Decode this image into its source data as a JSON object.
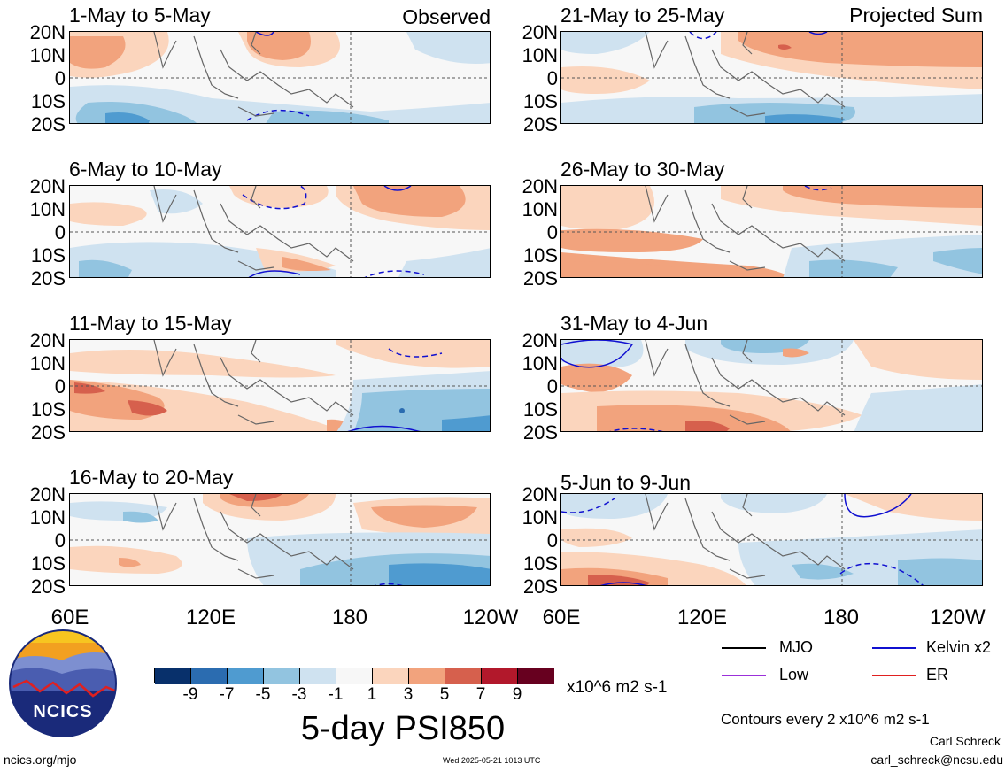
{
  "panels": [
    {
      "title": "1-May to 5-May",
      "tag": "Observed"
    },
    {
      "title": "21-May to 25-May",
      "tag": "Projected Sum"
    },
    {
      "title": "6-May to 10-May",
      "tag": ""
    },
    {
      "title": "26-May to 30-May",
      "tag": ""
    },
    {
      "title": "11-May to 15-May",
      "tag": ""
    },
    {
      "title": "31-May to 4-Jun",
      "tag": ""
    },
    {
      "title": "16-May to 20-May",
      "tag": ""
    },
    {
      "title": "5-Jun to 9-Jun",
      "tag": ""
    }
  ],
  "lat_labels": [
    "20N",
    "10N",
    "0",
    "10S",
    "20S"
  ],
  "lon_labels": [
    "60E",
    "120E",
    "180",
    "120W"
  ],
  "colorbar": {
    "colors": [
      "#08306b",
      "#2b6cb0",
      "#4f9bd0",
      "#92c4e0",
      "#cfe2f0",
      "#f7f7f7",
      "#fbd5bd",
      "#f2a37d",
      "#d6604d",
      "#b2182b",
      "#67001f"
    ],
    "labels": [
      "-9",
      "-7",
      "-5",
      "-3",
      "-1",
      "1",
      "3",
      "5",
      "7",
      "9"
    ],
    "units": "x10^6 m2 s-1"
  },
  "main_title": "5-day PSI850",
  "legend": [
    {
      "label": "MJO",
      "color": "#000000"
    },
    {
      "label": "Kelvin x2",
      "color": "#1010d0"
    },
    {
      "label": "Low",
      "color": "#9b30d9"
    },
    {
      "label": "ER",
      "color": "#e02020"
    }
  ],
  "contour_note": "Contours every 2 x10^6 m2 s-1",
  "author": "Carl Schreck",
  "email": "carl_schreck@ncsu.edu",
  "site": "ncics.org/mjo",
  "timestamp": "Wed 2025-05-21 1013 UTC",
  "logo_text": "NCICS"
}
